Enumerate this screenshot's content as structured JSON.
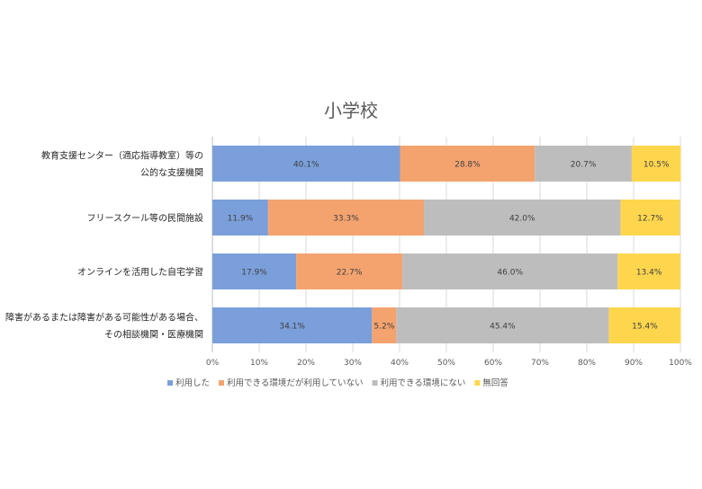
{
  "chart_data": {
    "type": "bar",
    "orientation": "horizontal",
    "stacked": true,
    "percent_stacked": true,
    "title": "小学校",
    "categories": [
      [
        "教育支援センター（適応指導教室）等の",
        "公的な支援機関"
      ],
      [
        "フリースクール等の民間施設"
      ],
      [
        "オンラインを活用した自宅学習"
      ],
      [
        "障害があるまたは障害がある可能性がある場合、",
        "その相談機関・医療機関"
      ]
    ],
    "series": [
      {
        "name": "利用した",
        "color": "#7A9FDA",
        "values": [
          40.1,
          11.9,
          17.9,
          34.1
        ]
      },
      {
        "name": "利用できる環境だが利用していない",
        "color": "#F4A36F",
        "values": [
          28.8,
          33.3,
          22.7,
          5.2
        ]
      },
      {
        "name": "利用できる環境にない",
        "color": "#BDBDBD",
        "values": [
          20.7,
          42.0,
          46.0,
          45.4
        ]
      },
      {
        "name": "無回答",
        "color": "#FED64E",
        "values": [
          10.5,
          12.7,
          13.4,
          15.4
        ]
      }
    ],
    "data_labels": [
      [
        "40.1%",
        "11.9%",
        "17.9%",
        "34.1%"
      ],
      [
        "28.8%",
        "33.3%",
        "22.7%",
        "5.2%"
      ],
      [
        "20.7%",
        "42.0%",
        "46.0%",
        "45.4%"
      ],
      [
        "10.5%",
        "12.7%",
        "13.4%",
        "15.4%"
      ]
    ],
    "x_ticks": [
      "0%",
      "10%",
      "20%",
      "30%",
      "40%",
      "50%",
      "60%",
      "70%",
      "80%",
      "90%",
      "100%"
    ],
    "xlim": [
      0,
      100
    ],
    "grid": true,
    "legend_position": "bottom"
  }
}
